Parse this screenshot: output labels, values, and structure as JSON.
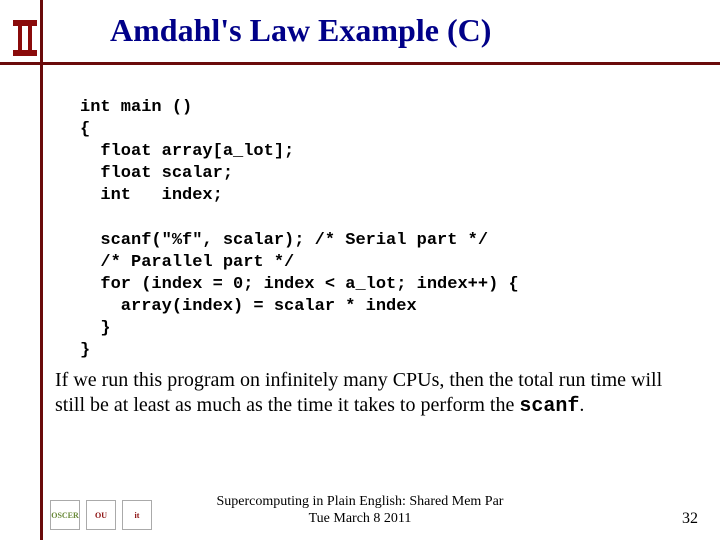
{
  "title": "Amdahl's Law Example (C)",
  "title_color": "#000088",
  "rule_color": "#6a0a0a",
  "code_font": "Courier New",
  "code_fontsize": 17,
  "code_lines": [
    "int main ()",
    "{",
    "  float array[a_lot];",
    "  float scalar;",
    "  int   index;",
    "",
    "  scanf(\"%f\", scalar); /* Serial part */",
    "  /* Parallel part */",
    "  for (index = 0; index < a_lot; index++) {",
    "    array(index) = scalar * index",
    "  }",
    "}"
  ],
  "para_pre": "If we run this program on infinitely many CPUs, then the total run time will still be at least as much as the time it takes to perform the ",
  "para_scanf": "scanf",
  "para_post": ".",
  "footer_line1": "Supercomputing in Plain English: Shared Mem Par",
  "footer_line2": "Tue March 8 2011",
  "page_number": "32",
  "ou_logo_colors": {
    "outer": "#8a0b0b",
    "inner": "#ffffff"
  },
  "bottom_logos": [
    {
      "label": "OSCER",
      "color": "#6a8a3a"
    },
    {
      "label": "OU",
      "color": "#8a0b0b"
    },
    {
      "label": "it",
      "color": "#8a0b0b"
    }
  ]
}
